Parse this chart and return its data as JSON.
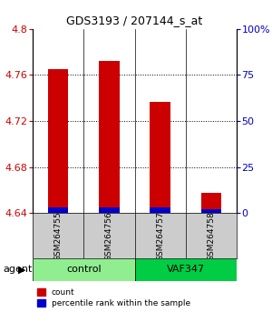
{
  "title": "GDS3193 / 207144_s_at",
  "samples": [
    "GSM264755",
    "GSM264756",
    "GSM264757",
    "GSM264758"
  ],
  "groups": [
    "control",
    "control",
    "VAF347",
    "VAF347"
  ],
  "group_labels": [
    "control",
    "VAF347"
  ],
  "group_colors": [
    "#90ee90",
    "#00cc00"
  ],
  "count_values": [
    4.765,
    4.772,
    4.737,
    4.658
  ],
  "percentile_values": [
    3,
    3,
    3,
    2
  ],
  "bar_base": 4.64,
  "ylim_left": [
    4.64,
    4.8
  ],
  "ylim_right": [
    0,
    100
  ],
  "yticks_left": [
    4.64,
    4.68,
    4.72,
    4.76,
    4.8
  ],
  "yticks_right": [
    0,
    25,
    50,
    75,
    100
  ],
  "ytick_labels_right": [
    "0",
    "25",
    "50",
    "75",
    "100%"
  ],
  "bar_color_red": "#cc0000",
  "bar_color_blue": "#0000cc",
  "bar_width": 0.4,
  "percentile_scale": 0.04,
  "agent_label": "agent",
  "left_color": "#cc0000",
  "right_color": "#0000cc"
}
